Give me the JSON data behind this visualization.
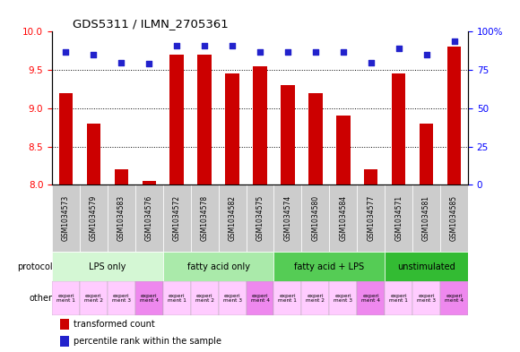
{
  "title": "GDS5311 / ILMN_2705361",
  "samples": [
    "GSM1034573",
    "GSM1034579",
    "GSM1034583",
    "GSM1034576",
    "GSM1034572",
    "GSM1034578",
    "GSM1034582",
    "GSM1034575",
    "GSM1034574",
    "GSM1034580",
    "GSM1034584",
    "GSM1034577",
    "GSM1034571",
    "GSM1034581",
    "GSM1034585"
  ],
  "bar_values": [
    9.2,
    8.8,
    8.2,
    8.05,
    9.7,
    9.7,
    9.45,
    9.55,
    9.3,
    9.2,
    8.9,
    8.2,
    9.45,
    8.8,
    9.8
  ],
  "scatter_values": [
    87,
    85,
    80,
    79,
    91,
    91,
    91,
    87,
    87,
    87,
    87,
    80,
    89,
    85,
    94
  ],
  "ylim_left": [
    8.0,
    10.0
  ],
  "ylim_right": [
    0,
    100
  ],
  "yticks_left": [
    8.0,
    8.5,
    9.0,
    9.5,
    10.0
  ],
  "yticks_right": [
    0,
    25,
    50,
    75,
    100
  ],
  "bar_color": "#cc0000",
  "scatter_color": "#2222cc",
  "protocol_groups": [
    {
      "label": "LPS only",
      "start": 0,
      "end": 4,
      "color": "#d4f7d4"
    },
    {
      "label": "fatty acid only",
      "start": 4,
      "end": 8,
      "color": "#aaeaaa"
    },
    {
      "label": "fatty acid + LPS",
      "start": 8,
      "end": 12,
      "color": "#55cc55"
    },
    {
      "label": "unstimulated",
      "start": 12,
      "end": 15,
      "color": "#33bb33"
    }
  ],
  "other_labels": [
    "experi\nment 1",
    "experi\nment 2",
    "experi\nment 3",
    "experi\nment 4",
    "experi\nment 1",
    "experi\nment 2",
    "experi\nment 3",
    "experi\nment 4",
    "experi\nment 1",
    "experi\nment 2",
    "experi\nment 3",
    "experi\nment 4",
    "experi\nment 1",
    "experi\nment 3",
    "experi\nment 4"
  ],
  "other_colors": [
    "#ffccff",
    "#ffccff",
    "#ffccff",
    "#ee88ee",
    "#ffccff",
    "#ffccff",
    "#ffccff",
    "#ee88ee",
    "#ffccff",
    "#ffccff",
    "#ffccff",
    "#ee88ee",
    "#ffccff",
    "#ffccff",
    "#ee88ee"
  ],
  "sample_bg": "#cccccc",
  "bar_width": 0.5,
  "legend_red": "transformed count",
  "legend_blue": "percentile rank within the sample"
}
